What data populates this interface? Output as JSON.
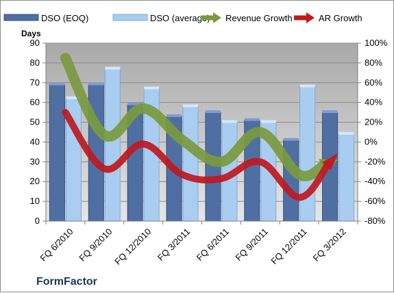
{
  "chart_data": {
    "type": "bar",
    "company": "FormFactor",
    "y_unit_label": "Days",
    "categories": [
      "FQ 6/2010",
      "FQ 9/2010",
      "FQ 12/2010",
      "FQ 3/2011",
      "FQ 6/2011",
      "FQ 9/2011",
      "FQ 12/2011",
      "FQ 3/2012"
    ],
    "ylim": [
      0,
      90
    ],
    "yticks": [
      "0",
      "10",
      "20",
      "30",
      "40",
      "50",
      "60",
      "70",
      "80",
      "90"
    ],
    "y2lim": [
      -80,
      100
    ],
    "y2ticks": [
      "-80%",
      "-60%",
      "-40%",
      "-20%",
      "0%",
      "20%",
      "40%",
      "60%",
      "80%",
      "100%"
    ],
    "series": [
      {
        "name": "DSO (EOQ)",
        "kind": "bar",
        "axis": "left",
        "color": "#4f6fa3",
        "values": [
          69,
          69,
          59,
          53,
          55,
          51,
          41,
          55
        ]
      },
      {
        "name": "DSO (average)",
        "kind": "bar",
        "axis": "left",
        "color": "#a9cdf0",
        "values": [
          62,
          77,
          67,
          58,
          50,
          50,
          68,
          44
        ]
      },
      {
        "name": "Revenue Growth",
        "kind": "line-arrow",
        "axis": "right",
        "color": "#7a9a3e",
        "values": [
          85,
          7,
          34,
          2,
          -20,
          10,
          -33,
          -18
        ]
      },
      {
        "name": "AR Growth",
        "kind": "line-arrow",
        "axis": "right",
        "color": "#c0181f",
        "values": [
          30,
          -27,
          -2,
          -33,
          -37,
          -20,
          -56,
          -11
        ]
      }
    ],
    "grid": true,
    "legend_position": "top"
  }
}
